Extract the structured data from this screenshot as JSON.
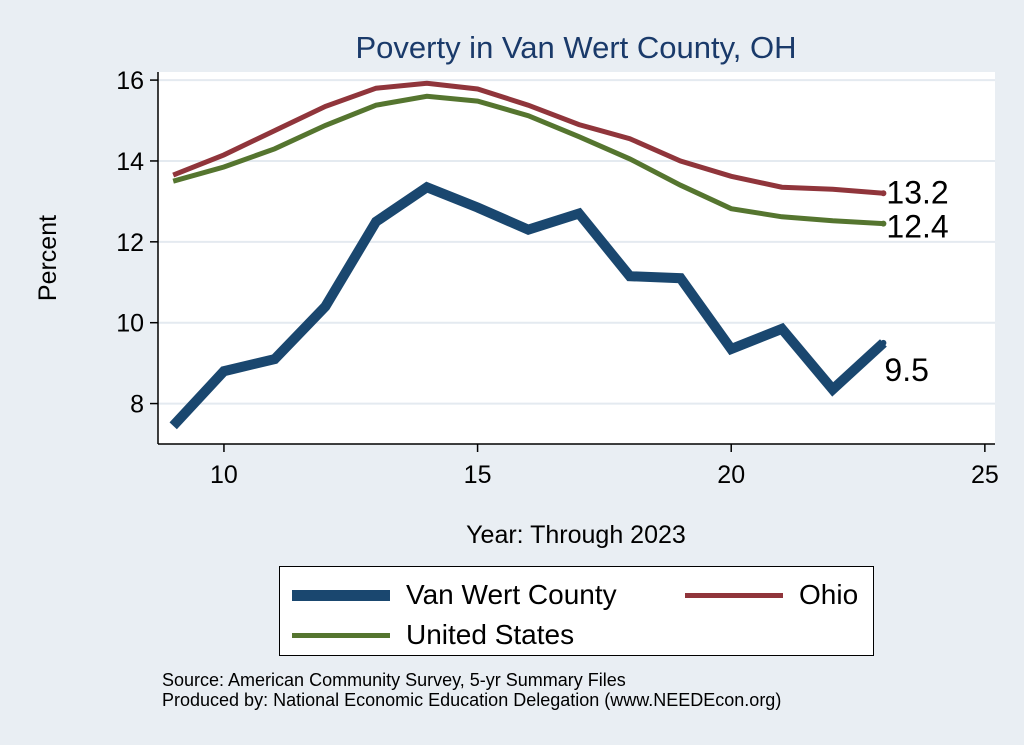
{
  "chart_data": {
    "type": "line",
    "title": "Poverty in Van Wert County, OH",
    "xlabel": "Year: Through 2023",
    "ylabel": "Percent",
    "xlim": [
      8.7,
      25.2
    ],
    "ylim": [
      7.0,
      16.2
    ],
    "xticks": [
      10,
      15,
      20,
      25
    ],
    "yticks": [
      8,
      10,
      12,
      14,
      16
    ],
    "grid": true,
    "x": [
      9,
      10,
      11,
      12,
      13,
      14,
      15,
      16,
      17,
      18,
      19,
      20,
      21,
      22,
      23
    ],
    "series": [
      {
        "name": "Van Wert County",
        "color": "#1a476f",
        "values": [
          7.45,
          8.8,
          9.1,
          10.4,
          12.5,
          13.35,
          12.85,
          12.3,
          12.7,
          11.15,
          11.1,
          9.35,
          9.85,
          8.35,
          9.5
        ],
        "end_label": "9.5"
      },
      {
        "name": "Ohio",
        "color": "#90353b",
        "values": [
          13.65,
          14.15,
          14.75,
          15.35,
          15.8,
          15.92,
          15.78,
          15.38,
          14.9,
          14.55,
          14.0,
          13.62,
          13.35,
          13.3,
          13.2
        ],
        "end_label": "13.2"
      },
      {
        "name": "United States",
        "color": "#55752f",
        "values": [
          13.5,
          13.85,
          14.3,
          14.88,
          15.38,
          15.6,
          15.48,
          15.12,
          14.6,
          14.05,
          13.4,
          12.82,
          12.62,
          12.52,
          12.45
        ],
        "end_label": "12.4"
      }
    ],
    "legend": {
      "placement": "bottom",
      "items": [
        "Van Wert County",
        "Ohio",
        "United States"
      ]
    }
  },
  "source": {
    "line1": "Source: American Community Survey, 5-yr Summary Files",
    "line2": "Produced by: National Economic Education Delegation (www.NEEDEcon.org)"
  }
}
